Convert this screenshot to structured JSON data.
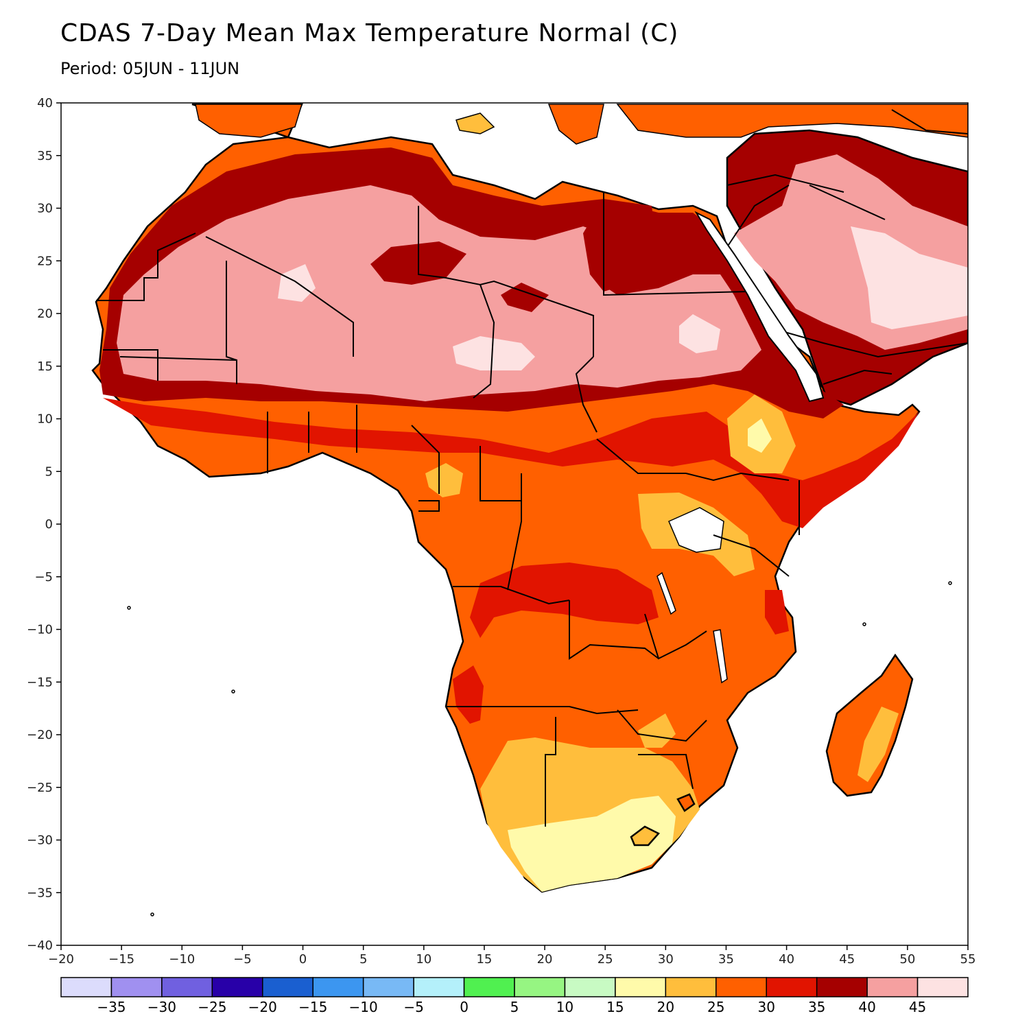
{
  "title": "CDAS 7-Day Mean Max Temperature Normal (C)",
  "period_label": "Period:",
  "period_value": "05JUN - 11JUN",
  "axes": {
    "lon_ticks": [
      "-20",
      "-15",
      "-10",
      "-5",
      "0",
      "5",
      "10",
      "15",
      "20",
      "25",
      "30",
      "35",
      "40",
      "45",
      "50",
      "55"
    ],
    "lat_ticks": [
      "40",
      "35",
      "30",
      "25",
      "20",
      "15",
      "10",
      "5",
      "0",
      "-5",
      "-10",
      "-15",
      "-20",
      "-25",
      "-30",
      "-35",
      "-40"
    ],
    "lon_range": [
      -20,
      55
    ],
    "lat_range": [
      -40,
      40
    ]
  },
  "colorbar": {
    "colors": [
      "#dcdcfc",
      "#a090f0",
      "#7060e0",
      "#2800a8",
      "#1a5fd0",
      "#3c96f0",
      "#78b9f5",
      "#b4f0fa",
      "#50f050",
      "#96f582",
      "#c8fac3",
      "#fffaaa",
      "#ffbe3c",
      "#ff6000",
      "#e11400",
      "#a50000",
      "#f5a0a0",
      "#fde2e2"
    ],
    "labels": [
      "-35",
      "-30",
      "-25",
      "-20",
      "-15",
      "-10",
      "-5",
      "0",
      "5",
      "10",
      "15",
      "20",
      "25",
      "30",
      "35",
      "40",
      "45"
    ]
  },
  "map_features": [
    "africa-landmass",
    "arabian-peninsula",
    "madagascar",
    "southern-europe",
    "red-sea",
    "mediterranean-sea",
    "lake-victoria",
    "lake-tanganyika",
    "lake-malawi",
    "country-borders"
  ]
}
